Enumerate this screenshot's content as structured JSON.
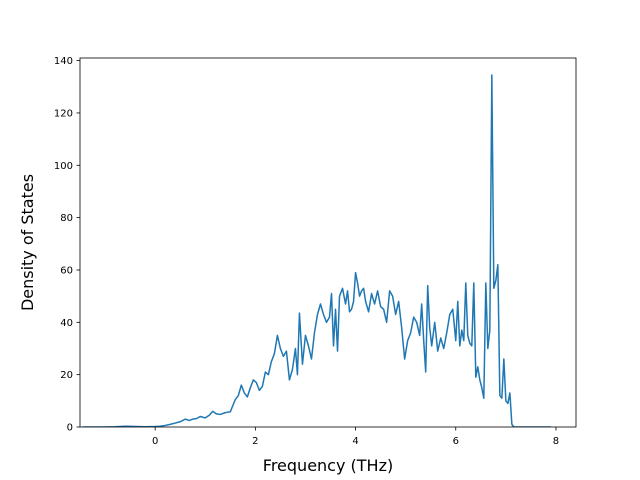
{
  "chart_data": {
    "type": "line",
    "title": "",
    "xlabel": "Frequency (THz)",
    "ylabel": "Density of States",
    "xlim": [
      -1.5,
      8.4
    ],
    "ylim": [
      0,
      141
    ],
    "xticks": [
      0,
      2,
      4,
      6,
      8
    ],
    "yticks": [
      0,
      20,
      40,
      60,
      80,
      100,
      120,
      140
    ],
    "grid": false,
    "legend": "none",
    "series": [
      {
        "color": "#1f77b4",
        "x": [
          -1.45,
          -1.2,
          -1.0,
          -0.8,
          -0.6,
          -0.4,
          -0.2,
          0.0,
          0.1,
          0.2,
          0.3,
          0.4,
          0.5,
          0.6,
          0.68,
          0.75,
          0.82,
          0.9,
          1.0,
          1.08,
          1.15,
          1.22,
          1.3,
          1.4,
          1.5,
          1.6,
          1.66,
          1.72,
          1.78,
          1.84,
          1.9,
          1.96,
          2.02,
          2.08,
          2.14,
          2.2,
          2.26,
          2.32,
          2.38,
          2.44,
          2.5,
          2.56,
          2.62,
          2.68,
          2.74,
          2.8,
          2.84,
          2.88,
          2.94,
          3.0,
          3.06,
          3.12,
          3.18,
          3.24,
          3.3,
          3.36,
          3.42,
          3.48,
          3.52,
          3.56,
          3.6,
          3.64,
          3.68,
          3.74,
          3.8,
          3.84,
          3.88,
          3.92,
          3.96,
          4.0,
          4.04,
          4.08,
          4.12,
          4.16,
          4.2,
          4.26,
          4.32,
          4.38,
          4.44,
          4.5,
          4.56,
          4.62,
          4.68,
          4.74,
          4.8,
          4.86,
          4.92,
          4.98,
          5.04,
          5.1,
          5.16,
          5.22,
          5.28,
          5.32,
          5.36,
          5.4,
          5.44,
          5.48,
          5.52,
          5.58,
          5.64,
          5.7,
          5.76,
          5.82,
          5.88,
          5.94,
          6.0,
          6.04,
          6.08,
          6.12,
          6.16,
          6.2,
          6.24,
          6.28,
          6.32,
          6.36,
          6.4,
          6.44,
          6.48,
          6.52,
          6.56,
          6.6,
          6.64,
          6.68,
          6.72,
          6.76,
          6.8,
          6.84,
          6.88,
          6.92,
          6.96,
          7.0,
          7.04,
          7.08,
          7.12,
          7.16,
          7.3,
          7.6,
          7.9
        ],
        "y": [
          0,
          0,
          0,
          0.1,
          0.3,
          0.2,
          0.1,
          0.2,
          0.3,
          0.6,
          1.0,
          1.5,
          2.0,
          3.0,
          2.5,
          3.0,
          3.2,
          4.0,
          3.5,
          4.5,
          6.0,
          5.0,
          4.8,
          5.5,
          5.8,
          10.5,
          12.0,
          16.0,
          13.0,
          11.5,
          15.0,
          18.0,
          17.0,
          14.0,
          15.5,
          21.0,
          20.0,
          25.0,
          28.0,
          35.0,
          30.0,
          27.0,
          29.0,
          18.0,
          22.0,
          30.0,
          20.0,
          43.5,
          24.0,
          35.0,
          31.0,
          26.0,
          36.0,
          43.0,
          47.0,
          43.0,
          40.0,
          42.0,
          51.0,
          31.0,
          45.0,
          29.0,
          50.0,
          53.0,
          47.0,
          52.0,
          44.0,
          45.0,
          48.0,
          59.0,
          55.0,
          50.0,
          52.0,
          53.0,
          48.0,
          44.0,
          51.0,
          47.0,
          52.0,
          46.0,
          45.0,
          40.0,
          52.0,
          50.0,
          43.0,
          48.0,
          38.0,
          26.0,
          33.0,
          36.0,
          42.0,
          40.0,
          35.0,
          47.0,
          33.0,
          21.0,
          54.0,
          38.0,
          31.0,
          40.0,
          29.0,
          34.0,
          30.0,
          36.0,
          43.0,
          45.0,
          33.0,
          48.0,
          31.0,
          37.0,
          33.0,
          55.0,
          35.0,
          32.0,
          31.0,
          55.0,
          19.0,
          23.0,
          18.0,
          15.0,
          11.0,
          55.0,
          30.0,
          37.0,
          134.5,
          53.0,
          56.0,
          62.0,
          12.0,
          11.0,
          26.0,
          10.0,
          9.0,
          13.0,
          1.0,
          0,
          0,
          0,
          0
        ]
      }
    ]
  }
}
